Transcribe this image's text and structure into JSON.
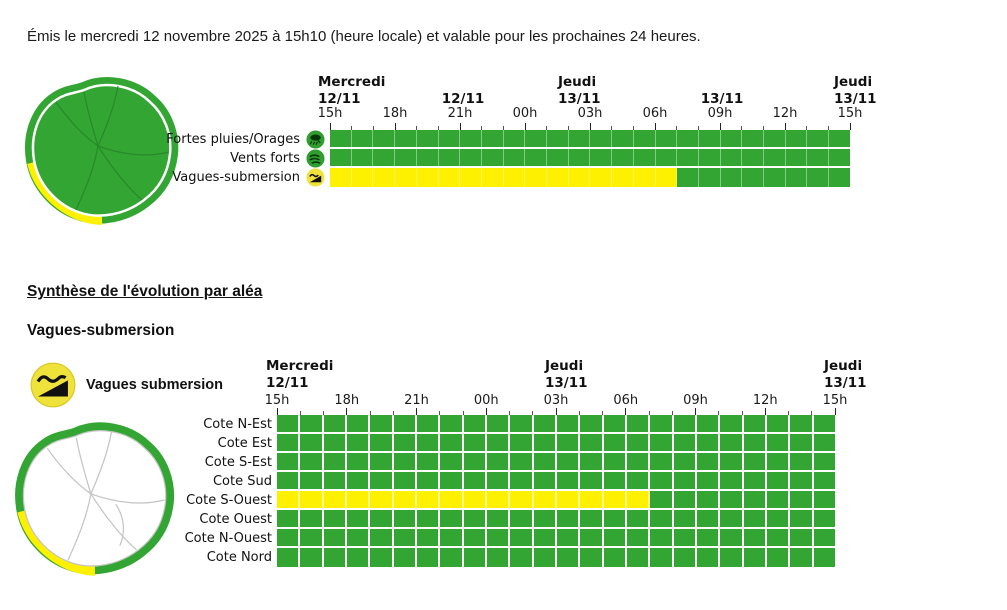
{
  "page": {
    "issued_line": "Émis le mercredi 12 novembre 2025 à 15h10 (heure locale) et valable pour les prochaines 24 heures.",
    "section_title": "Synthèse de l'évolution par aléa",
    "section_subtitle": "Vagues-submersion"
  },
  "colors": {
    "alert_green": "#33a532",
    "alert_yellow": "#fdf000",
    "icon_yellow": "#efe23a",
    "icon_green": "#2f9e2f"
  },
  "legend": {
    "icon": "waves-icon",
    "label": "Vagues submersion"
  },
  "chart_data": [
    {
      "type": "heatmap",
      "name": "hazard-timeline-overview",
      "x_ticks": [
        "15h",
        "18h",
        "21h",
        "00h",
        "03h",
        "06h",
        "09h",
        "12h",
        "15h"
      ],
      "x_span_hours": 24,
      "x_range": [
        "Mercredi 12/11 15h",
        "Jeudi 13/11 15h"
      ],
      "date_groups": [
        {
          "day": "Mercredi",
          "date": "12/11"
        },
        {
          "day": "",
          "date": "12/11"
        },
        {
          "day": "Jeudi",
          "date": "13/11"
        },
        {
          "day": "",
          "date": "13/11"
        },
        {
          "day": "Jeudi",
          "date": "13/11"
        }
      ],
      "rows": [
        {
          "label": "Fortes pluies/Orages",
          "icon": "storm-icon",
          "segments": [
            {
              "level": "vert",
              "color_key": "green",
              "hours": 24
            }
          ]
        },
        {
          "label": "Vents forts",
          "icon": "wind-icon",
          "segments": [
            {
              "level": "vert",
              "color_key": "green",
              "hours": 24
            }
          ]
        },
        {
          "label": "Vagues-submersion",
          "icon": "waves-icon",
          "segments": [
            {
              "level": "jaune",
              "color_key": "yellow",
              "hours": 16
            },
            {
              "level": "vert",
              "color_key": "green",
              "hours": 8
            }
          ]
        }
      ]
    },
    {
      "type": "heatmap",
      "name": "vagues-submersion-by-coast",
      "x_ticks": [
        "15h",
        "18h",
        "21h",
        "00h",
        "03h",
        "06h",
        "09h",
        "12h",
        "15h"
      ],
      "x_span_hours": 24,
      "x_range": [
        "Mercredi 12/11 15h",
        "Jeudi 13/11 15h"
      ],
      "date_groups": [
        {
          "day": "Mercredi",
          "date": "12/11"
        },
        {
          "day": "Jeudi",
          "date": "13/11"
        },
        {
          "day": "Jeudi",
          "date": "13/11"
        }
      ],
      "rows": [
        {
          "label": "Cote N-Est",
          "segments": [
            {
              "level": "vert",
              "color_key": "green",
              "hours": 24
            }
          ]
        },
        {
          "label": "Cote Est",
          "segments": [
            {
              "level": "vert",
              "color_key": "green",
              "hours": 24
            }
          ]
        },
        {
          "label": "Cote S-Est",
          "segments": [
            {
              "level": "vert",
              "color_key": "green",
              "hours": 24
            }
          ]
        },
        {
          "label": "Cote Sud",
          "segments": [
            {
              "level": "vert",
              "color_key": "green",
              "hours": 24
            }
          ]
        },
        {
          "label": "Cote S-Ouest",
          "segments": [
            {
              "level": "jaune",
              "color_key": "yellow",
              "hours": 16
            },
            {
              "level": "vert",
              "color_key": "green",
              "hours": 8
            }
          ]
        },
        {
          "label": "Cote Ouest",
          "segments": [
            {
              "level": "vert",
              "color_key": "green",
              "hours": 24
            }
          ]
        },
        {
          "label": "Cote N-Ouest",
          "segments": [
            {
              "level": "vert",
              "color_key": "green",
              "hours": 24
            }
          ]
        },
        {
          "label": "Cote Nord",
          "segments": [
            {
              "level": "vert",
              "color_key": "green",
              "hours": 24
            }
          ]
        }
      ]
    }
  ]
}
